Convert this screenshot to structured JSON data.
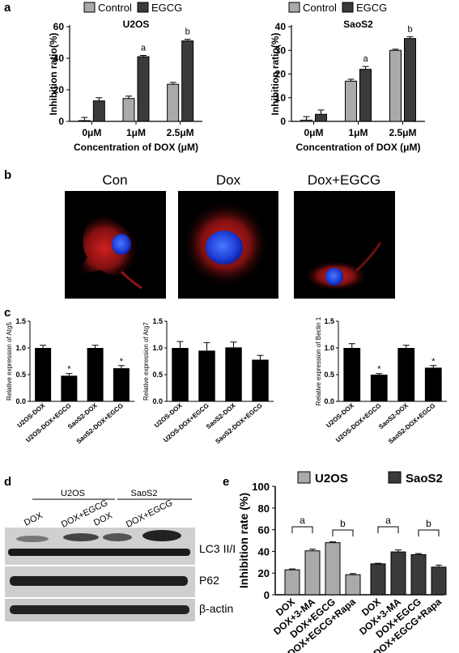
{
  "panel_labels": {
    "a": "a",
    "b": "b",
    "c": "c",
    "d": "d",
    "e": "e"
  },
  "chart_data": [
    {
      "panel": "a",
      "type": "bar",
      "title": "U2OS",
      "categories": [
        "0μM",
        "1μM",
        "2.5μM"
      ],
      "series": [
        {
          "name": "Control",
          "values": [
            0.5,
            14.5,
            23.5
          ],
          "errors": [
            2,
            1.5,
            1.2
          ],
          "color": "#aaaaaa"
        },
        {
          "name": "EGCG",
          "values": [
            13,
            41,
            51
          ],
          "errors": [
            2,
            0.8,
            1
          ],
          "color": "#3a3a3a"
        }
      ],
      "annotations": [
        "",
        "a",
        "b"
      ],
      "xlabel": "Concentration of DOX (μM)",
      "ylabel": "Inhibition ratio(%)",
      "ylim": [
        0,
        60
      ],
      "yticks": [
        0,
        20,
        40,
        60
      ]
    },
    {
      "panel": "a",
      "type": "bar",
      "title": "SaoS2",
      "categories": [
        "0μM",
        "1μM",
        "2.5μM"
      ],
      "series": [
        {
          "name": "Control",
          "values": [
            0.5,
            17,
            30
          ],
          "errors": [
            1.5,
            0.8,
            0.5
          ],
          "color": "#aaaaaa"
        },
        {
          "name": "EGCG",
          "values": [
            3,
            22,
            35
          ],
          "errors": [
            1.8,
            1.2,
            0.8
          ],
          "color": "#3a3a3a"
        }
      ],
      "annotations": [
        "",
        "a",
        "b"
      ],
      "xlabel": "Concentration of DOX (μM)",
      "ylabel": "Inhibition ratio(%)",
      "ylim": [
        0,
        40
      ],
      "yticks": [
        0,
        10,
        20,
        30,
        40
      ]
    },
    {
      "panel": "c",
      "type": "bar",
      "ylabel": "Relative expression of Atg5",
      "categories": [
        "U2OS-DOX",
        "U2OS-DOX+EGCG",
        "SaoS2-DOX",
        "SaoS2-DOX+EGCG"
      ],
      "values": [
        1.0,
        0.48,
        1.0,
        0.62
      ],
      "errors": [
        0.05,
        0.04,
        0.05,
        0.05
      ],
      "annotations": [
        "",
        "*",
        "",
        "*"
      ],
      "ylim": [
        0,
        1.5
      ],
      "yticks": [
        "0.0",
        "0.5",
        "1.0",
        "1.5"
      ]
    },
    {
      "panel": "c",
      "type": "bar",
      "ylabel": "Relative expression of Atg7",
      "categories": [
        "U2OS-DOX",
        "U2OS-DOX+EGCG",
        "SaoS2-DOX",
        "SaoS2-DOX+EGCG"
      ],
      "values": [
        1.0,
        0.95,
        1.01,
        0.78
      ],
      "errors": [
        0.12,
        0.15,
        0.1,
        0.08
      ],
      "annotations": [
        "",
        "",
        "",
        ""
      ],
      "ylim": [
        0,
        1.5
      ],
      "yticks": [
        "0.0",
        "0.5",
        "1.0",
        "1.5"
      ]
    },
    {
      "panel": "c",
      "type": "bar",
      "ylabel": "Relative expression of Beclin 1",
      "categories": [
        "U2OS-DOX",
        "U2OS-DOX+EGCG",
        "SaoS2-DOX",
        "SaoS2-DOX+EGCG"
      ],
      "values": [
        1.0,
        0.5,
        1.0,
        0.63
      ],
      "errors": [
        0.08,
        0.02,
        0.05,
        0.04
      ],
      "annotations": [
        "",
        "*",
        "",
        "*"
      ],
      "ylim": [
        0,
        1.5
      ],
      "yticks": [
        "0.0",
        "0.5",
        "1.0",
        "1.5"
      ]
    },
    {
      "panel": "e",
      "type": "bar",
      "ylabel": "Inhibition rate (%)",
      "categories": [
        "DOX",
        "DOX+3-MA",
        "DOX+EGCG",
        "DOX+EGCG+Rapa"
      ],
      "series": [
        {
          "name": "U2OS",
          "values": [
            23,
            40.5,
            48,
            18.5
          ],
          "errors": [
            0.8,
            1.5,
            0.8,
            1
          ],
          "color": "#aaaaaa"
        },
        {
          "name": "SaoS2",
          "values": [
            28.5,
            39.5,
            37,
            25.5
          ],
          "errors": [
            0.5,
            1.8,
            1,
            1.8
          ],
          "color": "#3a3a3a"
        }
      ],
      "brackets": [
        "a",
        "b",
        "a",
        "b"
      ],
      "ylim": [
        0,
        100
      ],
      "yticks": [
        0,
        20,
        40,
        60,
        80,
        100
      ]
    }
  ],
  "panel_b": {
    "labels": [
      "Con",
      "Dox",
      "Dox+EGCG"
    ]
  },
  "panel_d": {
    "groups": [
      "U2OS",
      "SaoS2"
    ],
    "lanes": [
      "DOX",
      "DOX+EGCG",
      "DOX",
      "DOX+EGCG"
    ],
    "rows": [
      "LC3 II/I",
      "P62",
      "β-actin"
    ]
  }
}
